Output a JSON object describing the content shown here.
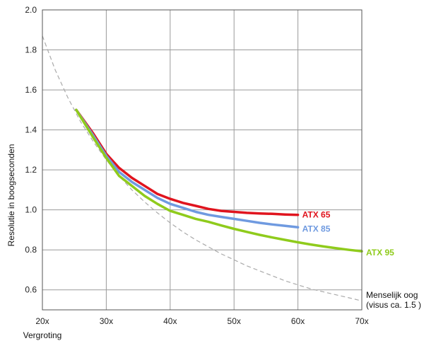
{
  "chart_data": {
    "type": "line",
    "title": "",
    "xlabel": "Vergroting",
    "ylabel": "Resolutie in boogseconden",
    "xlim": [
      20,
      70
    ],
    "ylim": [
      0.5,
      2.0
    ],
    "x_ticks": [
      "20x",
      "30x",
      "40x",
      "50x",
      "60x",
      "70x"
    ],
    "x_tick_values": [
      20,
      30,
      40,
      50,
      60,
      70
    ],
    "y_ticks": [
      "0.6",
      "0.8",
      "1.0",
      "1.2",
      "1.4",
      "1.6",
      "1.8",
      "2.0"
    ],
    "y_tick_values": [
      0.6,
      0.8,
      1.0,
      1.2,
      1.4,
      1.6,
      1.8,
      2.0
    ],
    "grid": true,
    "series": [
      {
        "name": "ATX 65",
        "color": "#e0141e",
        "x": [
          25.3,
          28,
          30,
          32,
          34,
          36,
          38,
          40,
          42,
          44,
          46,
          48,
          50,
          52,
          54,
          56,
          58,
          60
        ],
        "y": [
          1.5,
          1.38,
          1.28,
          1.21,
          1.16,
          1.12,
          1.08,
          1.055,
          1.035,
          1.02,
          1.005,
          0.995,
          0.99,
          0.985,
          0.982,
          0.98,
          0.977,
          0.975
        ]
      },
      {
        "name": "ATX 85",
        "color": "#6f9ae0",
        "x": [
          25.3,
          28,
          30,
          32,
          34,
          36,
          38,
          40,
          42,
          44,
          46,
          48,
          50,
          52,
          54,
          56,
          58,
          60
        ],
        "y": [
          1.5,
          1.37,
          1.27,
          1.19,
          1.14,
          1.1,
          1.06,
          1.03,
          1.01,
          0.99,
          0.975,
          0.965,
          0.955,
          0.945,
          0.935,
          0.927,
          0.92,
          0.913
        ]
      },
      {
        "name": "ATX 95",
        "color": "#8fcb1c",
        "x": [
          25.3,
          28,
          30,
          32,
          34,
          36,
          38,
          40,
          42,
          44,
          46,
          48,
          50,
          52,
          54,
          56,
          58,
          60,
          62,
          64,
          66,
          68,
          70
        ],
        "y": [
          1.5,
          1.36,
          1.26,
          1.17,
          1.12,
          1.07,
          1.03,
          0.995,
          0.975,
          0.955,
          0.94,
          0.922,
          0.905,
          0.89,
          0.875,
          0.862,
          0.85,
          0.838,
          0.827,
          0.817,
          0.808,
          0.8,
          0.793
        ]
      }
    ],
    "reference": {
      "name": "Menselijk oog",
      "note": "(visus ca. 1.5 )",
      "color": "#aaaaaa",
      "style": "dashed",
      "x": [
        20,
        22,
        24,
        26,
        28,
        30,
        32,
        34,
        36,
        38,
        40,
        42,
        44,
        46,
        48,
        50,
        52,
        54,
        56,
        58,
        60,
        62,
        64,
        66,
        68,
        70
      ],
      "y": [
        1.87,
        1.7,
        1.56,
        1.44,
        1.34,
        1.25,
        1.17,
        1.1,
        1.04,
        0.985,
        0.935,
        0.89,
        0.85,
        0.815,
        0.78,
        0.75,
        0.72,
        0.695,
        0.67,
        0.645,
        0.625,
        0.605,
        0.59,
        0.575,
        0.56,
        0.545
      ]
    }
  }
}
